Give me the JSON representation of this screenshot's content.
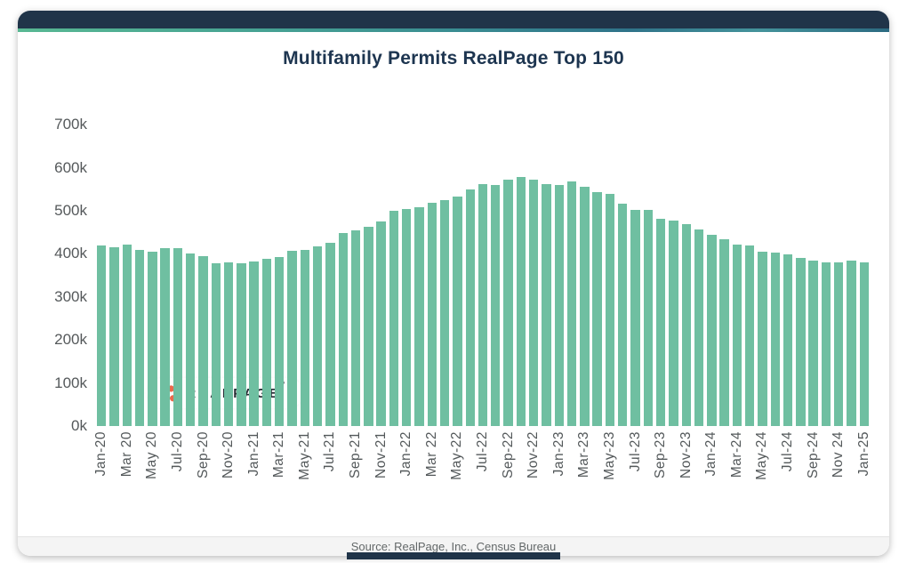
{
  "title": "Multifamily Permits RealPage Top 150",
  "footer": {
    "source": "Source: RealPage, Inc., Census Bureau"
  },
  "logo": {
    "text": "REALPAGE",
    "tm": "™",
    "dot_color": "#e96a4d",
    "text_color": "#262b33"
  },
  "colors": {
    "header_navy": "#203449",
    "title_navy": "#1d3550",
    "bar_teal": "#6fbfa1",
    "axis_gray": "#55595b",
    "accent_gradient_start": "#58b893",
    "accent_gradient_end": "#2c6a81"
  },
  "chart_data": {
    "type": "bar",
    "title": "Multifamily Permits RealPage Top 150",
    "xlabel": "",
    "ylabel": "",
    "unit": "permits, thousands (k)",
    "grid": false,
    "legend": false,
    "ylim_thousands": [
      0,
      750
    ],
    "y_ticks": [
      "0k",
      "100k",
      "200k",
      "300k",
      "400k",
      "500k",
      "600k",
      "700k"
    ],
    "y_tick_values_thousands": [
      0,
      100,
      200,
      300,
      400,
      500,
      600,
      700
    ],
    "x": [
      "Jan-20",
      "Feb-20",
      "Mar-20",
      "Apr-20",
      "May-20",
      "Jun-20",
      "Jul-20",
      "Aug-20",
      "Sep-20",
      "Oct-20",
      "Nov-20",
      "Dec-20",
      "Jan-21",
      "Feb-21",
      "Mar-21",
      "Apr-21",
      "May-21",
      "Jun-21",
      "Jul-21",
      "Aug-21",
      "Sep-21",
      "Oct-21",
      "Nov-21",
      "Dec-21",
      "Jan-22",
      "Feb-22",
      "Mar-22",
      "Apr-22",
      "May-22",
      "Jun-22",
      "Jul-22",
      "Aug-22",
      "Sep-22",
      "Oct-22",
      "Nov-22",
      "Dec-22",
      "Jan-23",
      "Feb-23",
      "Mar-23",
      "Apr-23",
      "May-23",
      "Jun-23",
      "Jul-23",
      "Aug-23",
      "Sep-23",
      "Oct-23",
      "Nov-23",
      "Dec-23",
      "Jan-24",
      "Feb-24",
      "Mar-24",
      "Apr-24",
      "May-24",
      "Jun-24",
      "Jul-24",
      "Aug-24",
      "Sep-24",
      "Oct-24",
      "Nov-24",
      "Dec-24",
      "Jan-25"
    ],
    "values_thousands": [
      420,
      416,
      422,
      410,
      406,
      413,
      414,
      400,
      394,
      379,
      381,
      379,
      382,
      389,
      393,
      408,
      410,
      417,
      425,
      449,
      454,
      463,
      476,
      500,
      504,
      508,
      518,
      524,
      533,
      549,
      563,
      561,
      573,
      579,
      573,
      562,
      559,
      569,
      555,
      544,
      539,
      516,
      503,
      502,
      482,
      477,
      470,
      457,
      445,
      433,
      422,
      420,
      406,
      403,
      399,
      390,
      384,
      380,
      381,
      384,
      381
    ],
    "x_tick_every": 2,
    "x_tick_labels": [
      "Jan-20",
      "Mar 20",
      "May 20",
      "Jul-20",
      "Sep-20",
      "Nov-20",
      "Jan-21",
      "Mar-21",
      "May-21",
      "Jul-21",
      "Sep-21",
      "Nov-21",
      "Jan-22",
      "Mar 22",
      "May-22",
      "Jul-22",
      "Sep-22",
      "Nov-22",
      "Jan-23",
      "Mar-23",
      "May-23",
      "Jul-23",
      "Sep-23",
      "Nov-23",
      "Jan-24",
      "Mar-24",
      "May-24",
      "Jul-24",
      "Sep-24",
      "Nov 24",
      "Jan-25"
    ],
    "bar_color": "#6fbfa1"
  }
}
